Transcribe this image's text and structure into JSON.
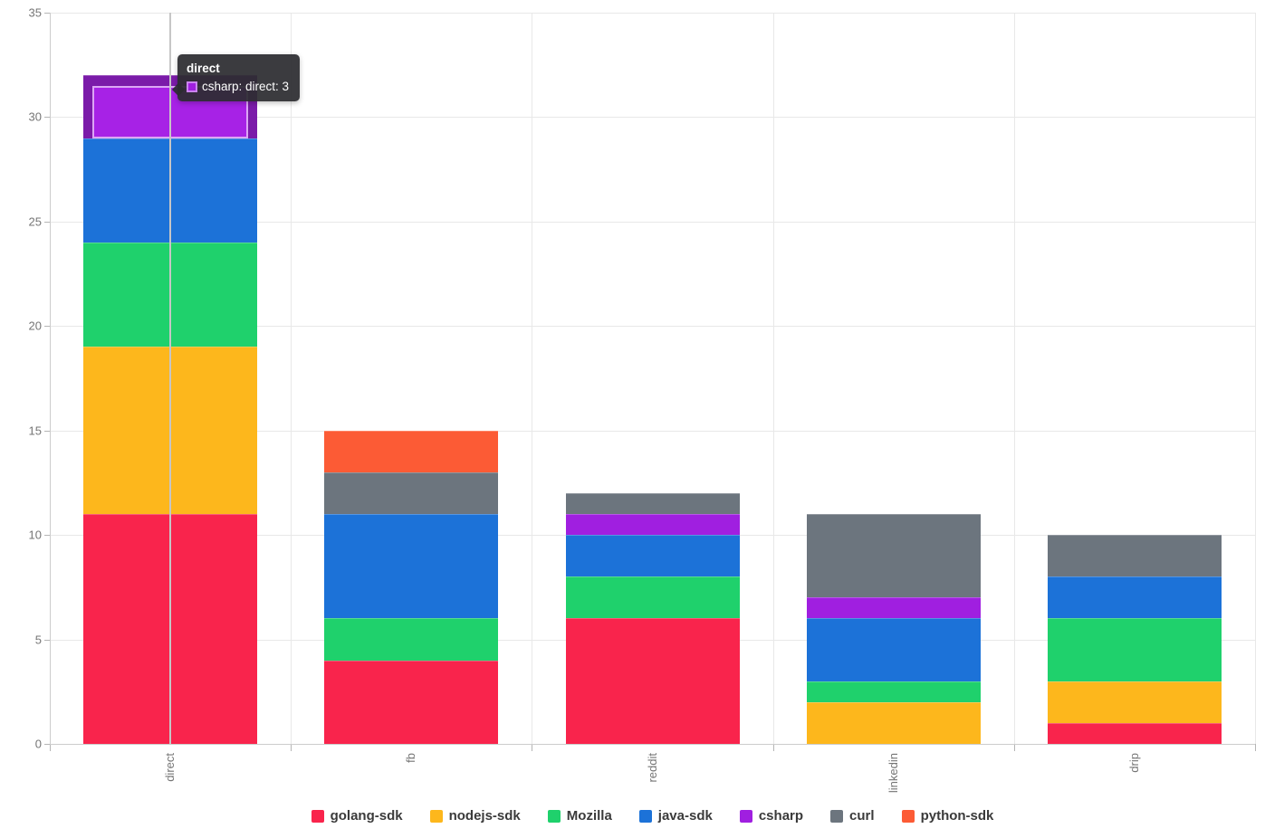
{
  "chart_data": {
    "type": "bar",
    "stacked": true,
    "title": "",
    "xlabel": "",
    "ylabel": "",
    "categories": [
      "direct",
      "fb",
      "reddit",
      "linkedin",
      "drip"
    ],
    "series": [
      {
        "name": "golang-sdk",
        "color": "#f9244c",
        "values": [
          11,
          4,
          6,
          0,
          1
        ]
      },
      {
        "name": "nodejs-sdk",
        "color": "#fdb71c",
        "values": [
          8,
          0,
          0,
          2,
          2
        ]
      },
      {
        "name": "Mozilla",
        "color": "#1fd16c",
        "values": [
          5,
          2,
          2,
          1,
          3
        ]
      },
      {
        "name": "java-sdk",
        "color": "#1c72d8",
        "values": [
          5,
          5,
          2,
          3,
          2
        ]
      },
      {
        "name": "csharp",
        "color": "#a01fe0",
        "values": [
          3,
          0,
          1,
          1,
          0
        ]
      },
      {
        "name": "curl",
        "color": "#6c757e",
        "values": [
          0,
          2,
          1,
          4,
          2
        ]
      },
      {
        "name": "python-sdk",
        "color": "#fc5b35",
        "values": [
          0,
          2,
          0,
          0,
          0
        ]
      }
    ],
    "ylim": [
      0,
      35
    ],
    "yticks": [
      0,
      5,
      10,
      15,
      20,
      25,
      30,
      35
    ],
    "grid": true,
    "legend_position": "bottom"
  },
  "tooltip": {
    "title": "direct",
    "rows": [
      {
        "series": "csharp",
        "swatch_color": "#a01fe0",
        "swatch_border": "#c983ef",
        "text": "csharp: direct: 3"
      }
    ]
  },
  "highlight": {
    "category": "direct",
    "series": "csharp",
    "outer_color": "#7b1ba9",
    "inner_color": "#a722e6",
    "inner_border": "rgba(255,255,255,0.6)"
  },
  "crosshair": {
    "category": "direct",
    "color": "#c6c6c6"
  },
  "axis": {
    "tick_color": "#b5b5b5",
    "line_color": "#cccccc",
    "grid_color": "#e8e8e8",
    "label_color": "#757575"
  }
}
